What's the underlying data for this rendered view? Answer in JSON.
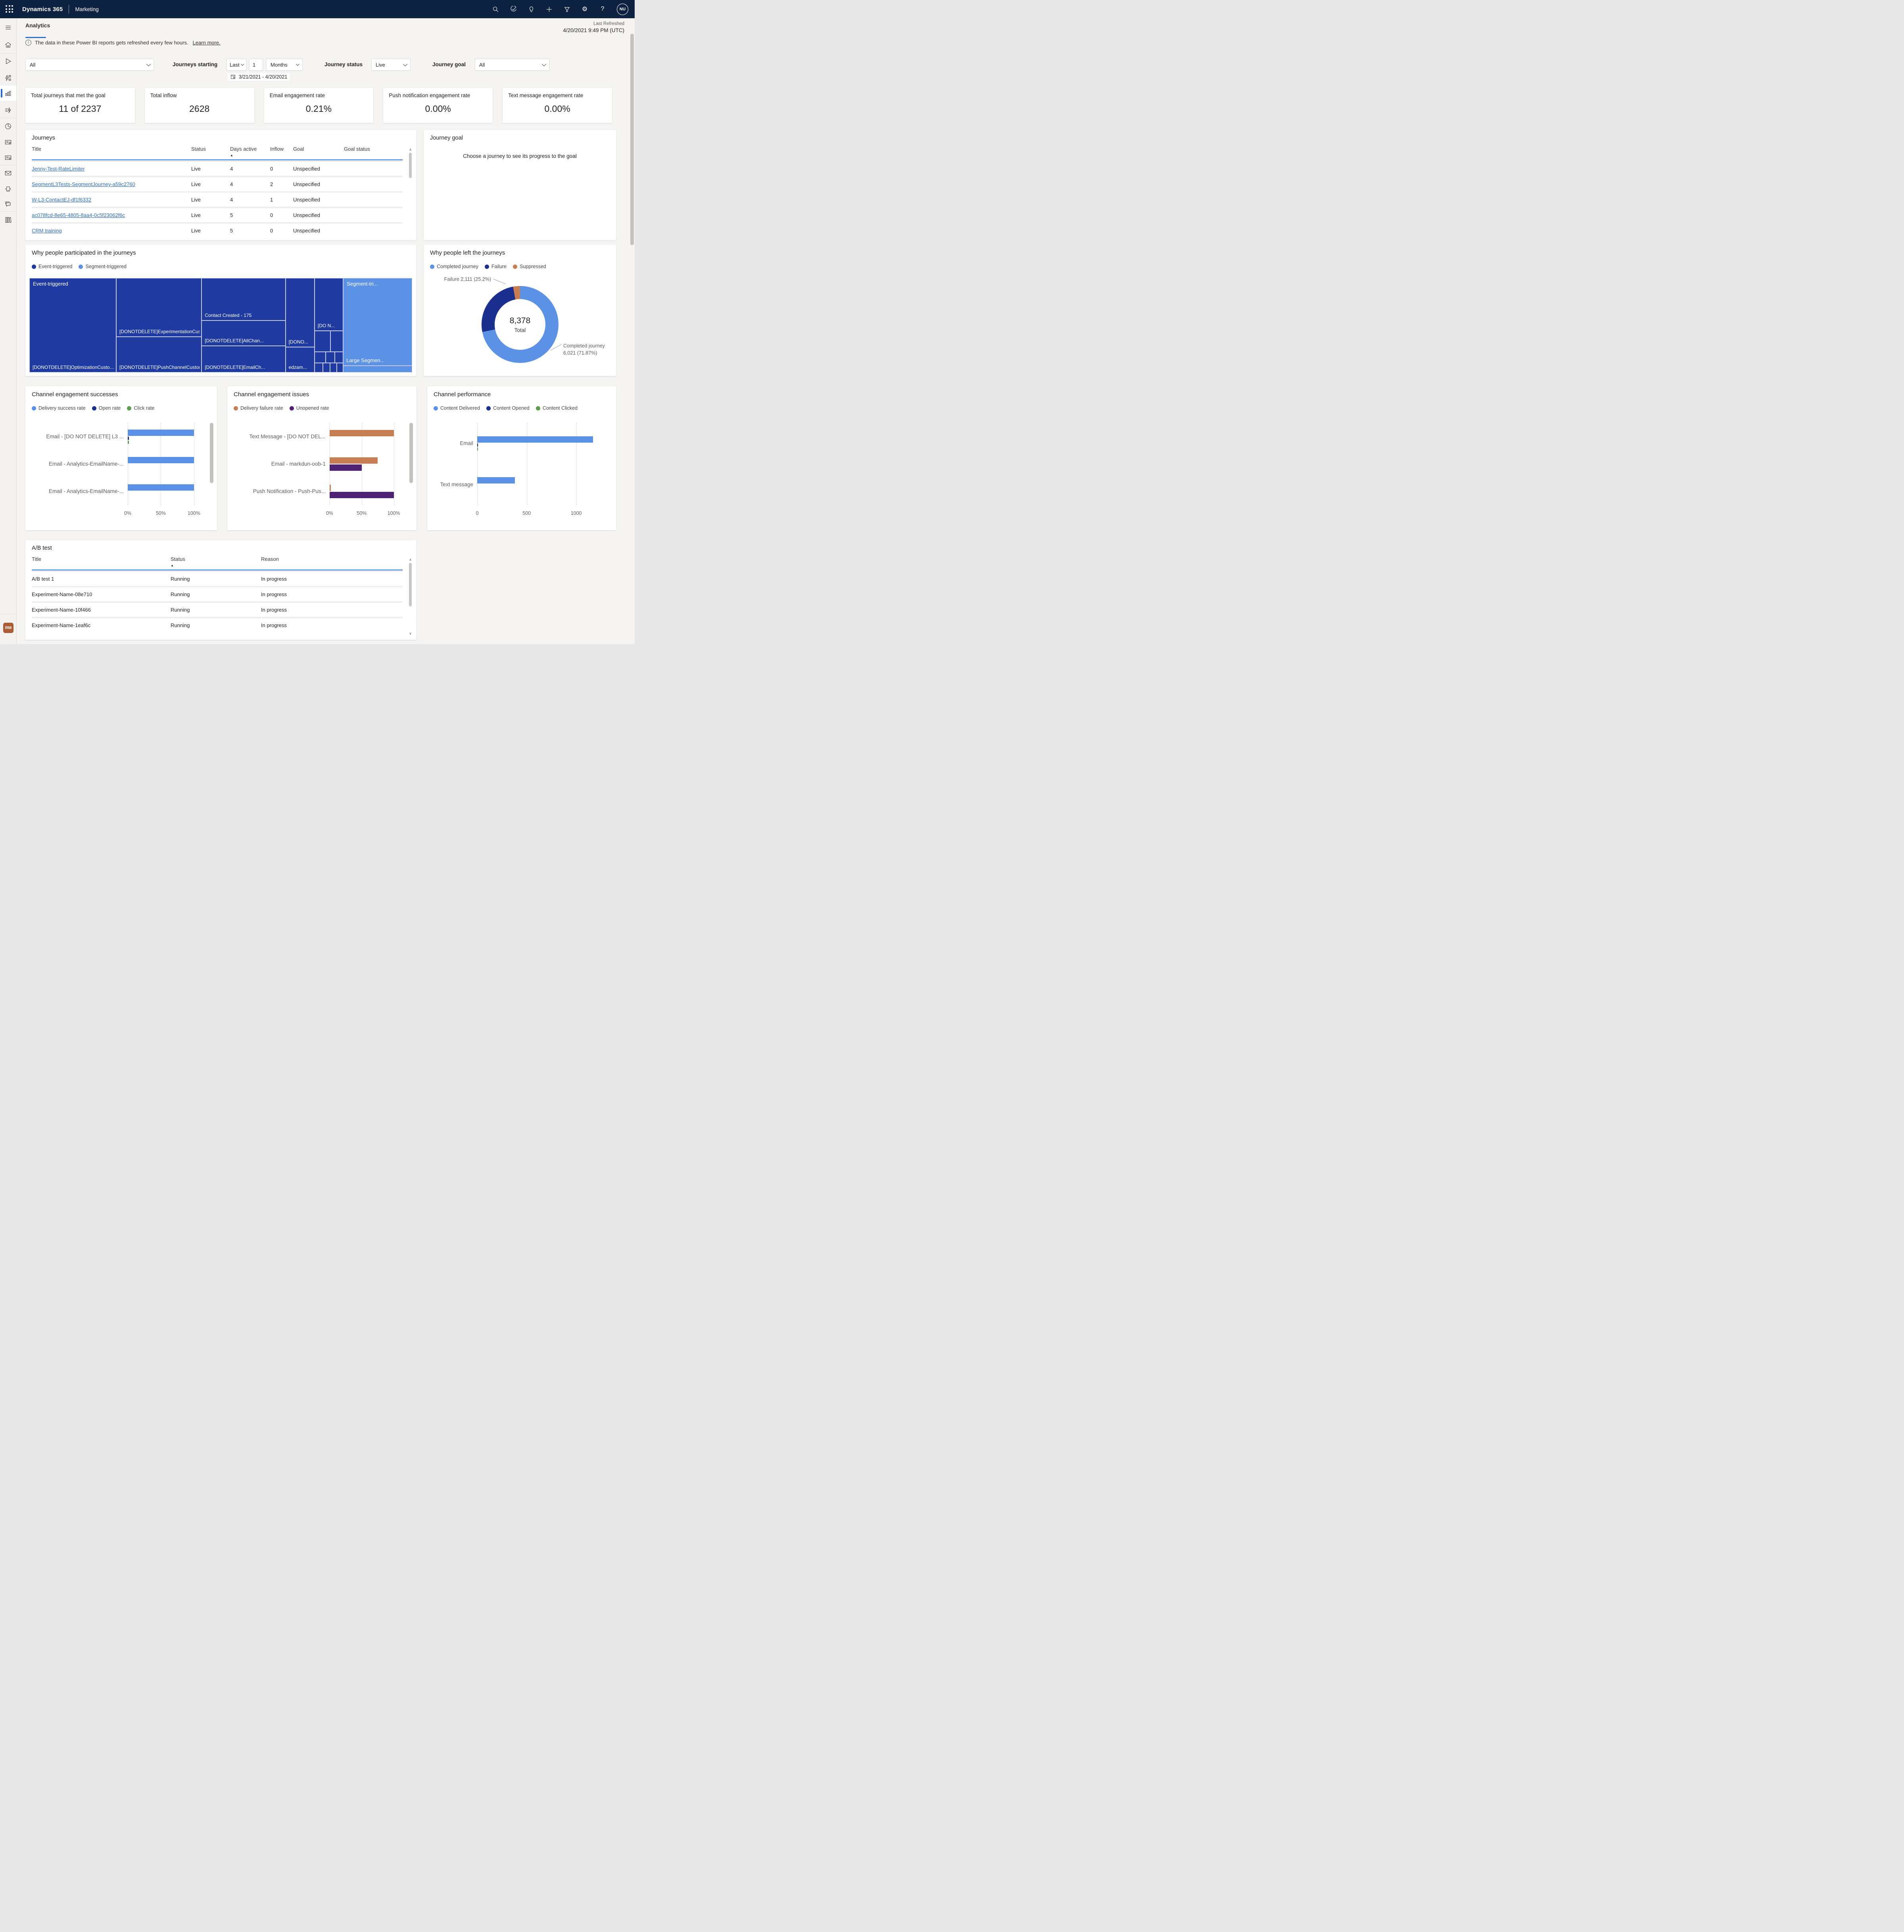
{
  "colors": {
    "header_bg": "#0d2140",
    "accent_blue": "#2f6fd0",
    "selected_indicator": "#2b66e0",
    "table_header_rule": "#2e79e6",
    "link": "#2e6fbe",
    "rm_badge": "#ab5c35"
  },
  "topbar": {
    "app_name": "Dynamics 365",
    "area_name": "Marketing",
    "avatar_initials": "NU",
    "gear_glyph": "⚙",
    "help_glyph": "?"
  },
  "sidebar": {
    "rm_badge": "RM"
  },
  "header": {
    "tab": "Analytics",
    "info_text": "The data in these Power BI reports gets refreshed every few hours.",
    "info_link": "Learn more.",
    "info_glyph": "i",
    "last_refreshed_label": "Last Refreshed",
    "last_refreshed_value": "4/20/2021 9:49 PM (UTC)"
  },
  "filters": {
    "journey_filter_value": "All",
    "journeys_starting_label": "Journeys starting",
    "range_mode": "Last",
    "range_count": "1",
    "range_unit": "Months",
    "date_range": "3/21/2021 - 4/20/2021",
    "journey_status_label": "Journey status",
    "journey_status_value": "Live",
    "journey_goal_label": "Journey goal",
    "journey_goal_value": "All"
  },
  "kpis": [
    {
      "label": "Total journeys that met the goal",
      "value": "11 of 2237"
    },
    {
      "label": "Total inflow",
      "value": "2628"
    },
    {
      "label": "Email engagement rate",
      "value": "0.21%"
    },
    {
      "label": "Push notification engagement rate",
      "value": "0.00%"
    },
    {
      "label": "Text message engagement rate",
      "value": "0.00%"
    }
  ],
  "journeys": {
    "title": "Journeys",
    "columns": [
      "Title",
      "Status",
      "Days active",
      "Inflow",
      "Goal",
      "Goal status"
    ],
    "sort_glyph": "▲",
    "rows": [
      {
        "title": "Jenny-Test-RateLimiter",
        "status": "Live",
        "days": "4",
        "inflow": "0",
        "goal": "Unspecified",
        "goal_status": ""
      },
      {
        "title": "SegmentL3Tests-SegmentJourney-a59c2760",
        "status": "Live",
        "days": "4",
        "inflow": "2",
        "goal": "Unspecified",
        "goal_status": ""
      },
      {
        "title": "W-L3-ContactEJ-df1f6332",
        "status": "Live",
        "days": "4",
        "inflow": "1",
        "goal": "Unspecified",
        "goal_status": ""
      },
      {
        "title": "ac078fcd-8e65-4805-8aa4-0c5f23062f6c",
        "status": "Live",
        "days": "5",
        "inflow": "0",
        "goal": "Unspecified",
        "goal_status": ""
      },
      {
        "title": "CRM training",
        "status": "Live",
        "days": "5",
        "inflow": "0",
        "goal": "Unspecified",
        "goal_status": ""
      }
    ],
    "scroll_up": "∧",
    "scroll_down": "∨"
  },
  "journey_goal_panel": {
    "title": "Journey goal",
    "empty_text": "Choose a journey to see its progress to the goal"
  },
  "ab_test": {
    "title": "A/B test",
    "columns": [
      "Title",
      "Status",
      "Reason"
    ],
    "sort_glyph": "▲",
    "rows": [
      {
        "title": "A/B test 1",
        "status": "Running",
        "reason": "In progress"
      },
      {
        "title": "Experiment-Name-08e710",
        "status": "Running",
        "reason": "In progress"
      },
      {
        "title": "Experiment-Name-10f466",
        "status": "Running",
        "reason": "In progress"
      },
      {
        "title": "Experiment-Name-1eaf6c",
        "status": "Running",
        "reason": "In progress"
      }
    ],
    "scroll_up": "∧",
    "scroll_down": "∨"
  },
  "chart_data": [
    {
      "type": "treemap",
      "title": "Why people participated in the journeys",
      "legend": [
        "Event-triggered",
        "Segment-triggered"
      ],
      "colors": {
        "event": "#1f3ba2",
        "segment": "#5b92e5"
      },
      "group_labels": [
        "Event-triggered",
        "Segment-tri..."
      ],
      "cell_labels": [
        "[DONOTDELETE]OptimizationCusto......",
        "[DONOTDELETE]ExperimentationCustomEvent - 505",
        "[DONOTDELETE]PushChannelCustomEvent - 402",
        "Contact Created - 175",
        "[DONOTDELETE]AllChan...",
        "[DONOTDELETE]EmailCh...",
        "[DONO...",
        "[DO N...",
        "edzam...",
        "Large Segmen..."
      ],
      "known_values": {
        "ExperimentationCustomEvent": 505,
        "PushChannelCustomEvent": 402,
        "Contact Created": 175
      }
    },
    {
      "type": "pie",
      "title": "Why people left the journeys",
      "legend": [
        "Completed journey",
        "Failure",
        "Suppressed"
      ],
      "colors": [
        "#5b92e5",
        "#1b2f8f",
        "#c87e52"
      ],
      "slices": [
        {
          "name": "Completed journey",
          "value": 6021,
          "pct": 71.87
        },
        {
          "name": "Failure",
          "value": 2111,
          "pct": 25.2
        },
        {
          "name": "Suppressed",
          "value": 246,
          "pct": 2.93
        }
      ],
      "total_value": "8,378",
      "total_label": "Total",
      "callout_failure": "Failure 2,111 (25.2%)",
      "callout_completed_line1": "Completed journey",
      "callout_completed_line2": "6,021 (71.87%)"
    },
    {
      "type": "bar",
      "title": "Channel engagement successes",
      "orientation": "horizontal",
      "categories": [
        "Email - [DO NOT DELETE] L3 ...",
        "Email - Analytics-EmailName-...",
        "Email - Analytics-EmailName-..."
      ],
      "series": [
        {
          "name": "Delivery success rate",
          "values": [
            100,
            100,
            100
          ]
        },
        {
          "name": "Open rate",
          "values": [
            0.5,
            0,
            0
          ]
        },
        {
          "name": "Click rate",
          "values": [
            0.5,
            0,
            0
          ]
        }
      ],
      "colors": [
        "#5b92e5",
        "#1b2f8f",
        "#5f9e4e"
      ],
      "xmax": 112,
      "tick_values": [
        0,
        50,
        100
      ],
      "tick_labels": [
        "0%",
        "50%",
        "100%"
      ]
    },
    {
      "type": "bar",
      "title": "Channel engagement issues",
      "orientation": "horizontal",
      "categories": [
        "Text Message - [DO NOT DEL...",
        "Email - markdun-oob-1",
        "Push Notification - Push-Pus..."
      ],
      "series": [
        {
          "name": "Delivery failure rate",
          "values": [
            100,
            75,
            2
          ]
        },
        {
          "name": "Unopened rate",
          "values": [
            0,
            50,
            100
          ]
        }
      ],
      "colors": [
        "#c87e52",
        "#4f2275"
      ],
      "xmax": 112,
      "tick_values": [
        0,
        50,
        100
      ],
      "tick_labels": [
        "0%",
        "50%",
        "100%"
      ]
    },
    {
      "type": "bar",
      "title": "Channel performance",
      "orientation": "horizontal",
      "categories": [
        "Email",
        "Text message"
      ],
      "series": [
        {
          "name": "Content Delivered",
          "values": [
            1170,
            380
          ]
        },
        {
          "name": "Content Opened",
          "values": [
            8,
            0
          ]
        },
        {
          "name": "Content Clicked",
          "values": [
            10,
            0
          ]
        }
      ],
      "colors": [
        "#5b92e5",
        "#1b2f8f",
        "#5f9e4e"
      ],
      "xmax": 1250,
      "tick_values": [
        0,
        500,
        1000
      ],
      "tick_labels": [
        "0",
        "500",
        "1000"
      ]
    }
  ]
}
